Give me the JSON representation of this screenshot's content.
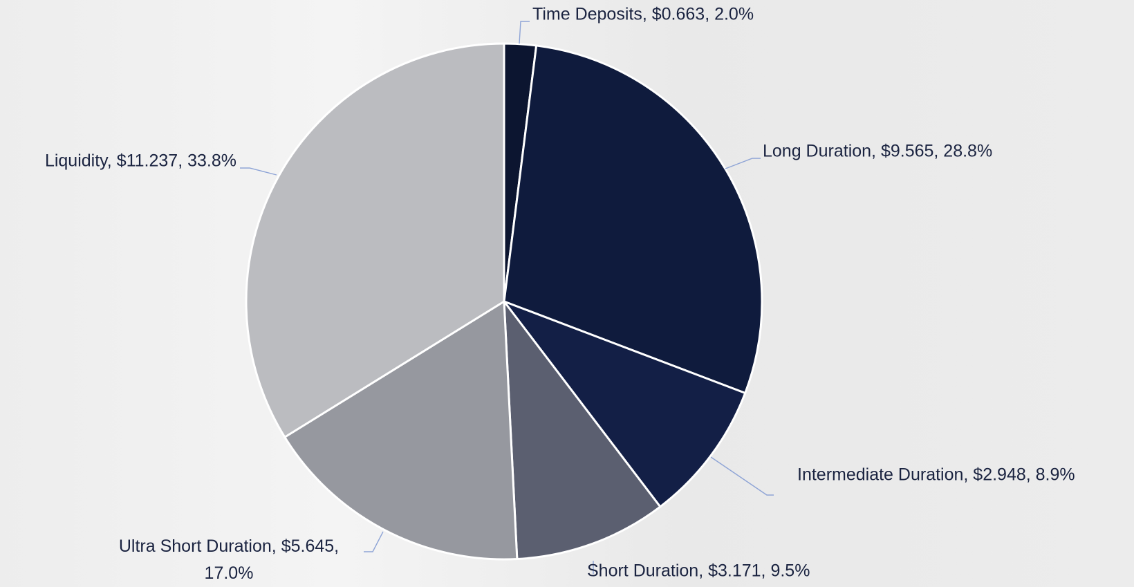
{
  "chart_data": {
    "type": "pie",
    "values": [
      0.663,
      9.565,
      2.948,
      3.171,
      5.645,
      11.237
    ],
    "value_labels": [
      "Time Deposits, $0.663, 2.0%",
      "Long Duration, $9.565, 28.8%",
      "Intermediate Duration, $2.948, 8.9%",
      "Short Duration, $3.171, 9.5%",
      "Ultra Short Duration, $5.645, 17.0%",
      "Liquidity, $11.237, 33.8%"
    ],
    "colors": [
      "#0c1530",
      "#0f1b3d",
      "#131f46",
      "#5b5f70",
      "#96989f",
      "#bbbcc0"
    ]
  }
}
